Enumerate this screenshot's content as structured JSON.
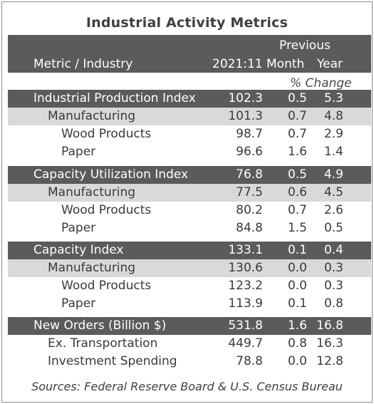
{
  "title": "Industrial Activity Metrics",
  "header": {
    "col_label": "Metric / Industry",
    "col_period": "2021:11",
    "previous": "Previous",
    "col_month": "Month",
    "col_year": "Year",
    "pct_change": "% Change"
  },
  "rows": [
    {
      "label": "Industrial Production Index",
      "value": "102.3",
      "month": "0.5",
      "year": "5.3"
    },
    {
      "label": "Manufacturing",
      "value": "101.3",
      "month": "0.7",
      "year": "4.8"
    },
    {
      "label": "Wood Products",
      "value": "98.7",
      "month": "0.7",
      "year": "2.9"
    },
    {
      "label": "Paper",
      "value": "96.6",
      "month": "1.6",
      "year": "1.4"
    },
    {
      "label": "Capacity Utilization Index",
      "value": "76.8",
      "month": "0.5",
      "year": "4.9"
    },
    {
      "label": "Manufacturing",
      "value": "77.5",
      "month": "0.6",
      "year": "4.5"
    },
    {
      "label": "Wood Products",
      "value": "80.2",
      "month": "0.7",
      "year": "2.6"
    },
    {
      "label": "Paper",
      "value": "84.8",
      "month": "1.5",
      "year": "0.5"
    },
    {
      "label": "Capacity Index",
      "value": "133.1",
      "month": "0.1",
      "year": "0.4"
    },
    {
      "label": "Manufacturing",
      "value": "130.6",
      "month": "0.0",
      "year": "0.3"
    },
    {
      "label": "Wood Products",
      "value": "123.2",
      "month": "0.0",
      "year": "0.3"
    },
    {
      "label": "Paper",
      "value": "113.9",
      "month": "0.1",
      "year": "0.8"
    },
    {
      "label": "New Orders (Billion $)",
      "value": "531.8",
      "month": "1.6",
      "year": "16.8"
    },
    {
      "label": "Ex. Transportation",
      "value": "449.7",
      "month": "0.8",
      "year": "16.3"
    },
    {
      "label": "Investment Spending",
      "value": "78.8",
      "month": "0.0",
      "year": "12.8"
    }
  ],
  "source": "Sources: Federal Reserve Board & U.S. Census Bureau"
}
